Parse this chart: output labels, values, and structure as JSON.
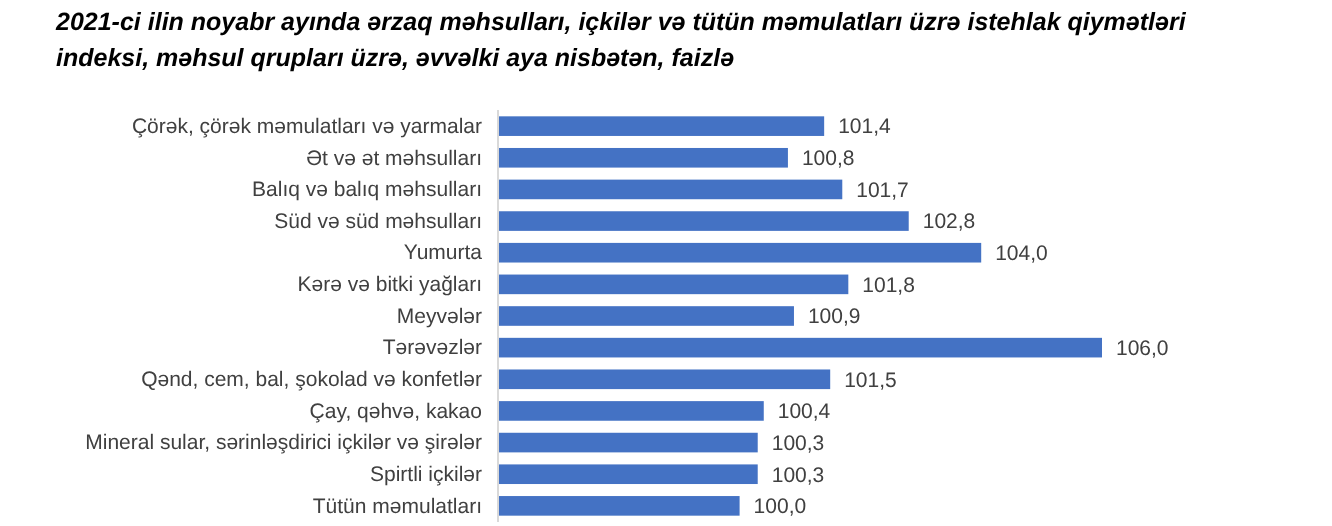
{
  "chart_data": {
    "type": "bar",
    "orientation": "horizontal",
    "title": "2021-ci ilin noyabr ayında ərzaq məhsulları, içkilər və tütün məmulatları üzrə istehlak qiymətləri indeksi, məhsul qrupları üzrə, əvvəlki aya nisbətən, faizlə",
    "categories": [
      "Çörək, çörək məmulatları və yarmalar",
      "Ət və ət məhsulları",
      "Balıq və balıq məhsulları",
      "Süd və süd məhsulları",
      "Yumurta",
      "Kərə və bitki yağları",
      "Meyvələr",
      "Tərəvəzlər",
      "Qənd, cem, bal, şokolad və konfetlər",
      "Çay, qəhvə, kakao",
      "Mineral sular, sərinləşdirici içkilər və şirələr",
      "Spirtli içkilər",
      "Tütün məmulatları"
    ],
    "values": [
      101.4,
      100.8,
      101.7,
      102.8,
      104.0,
      101.8,
      100.9,
      106.0,
      101.5,
      100.4,
      100.3,
      100.3,
      100.0
    ],
    "value_labels": [
      "101,4",
      "100,8",
      "101,7",
      "102,8",
      "104,0",
      "101,8",
      "100,9",
      "106,0",
      "101,5",
      "100,4",
      "100,3",
      "100,3",
      "100,0"
    ],
    "color": "#4472c4",
    "xlim": [
      96,
      106
    ],
    "tick_labels": "y"
  }
}
